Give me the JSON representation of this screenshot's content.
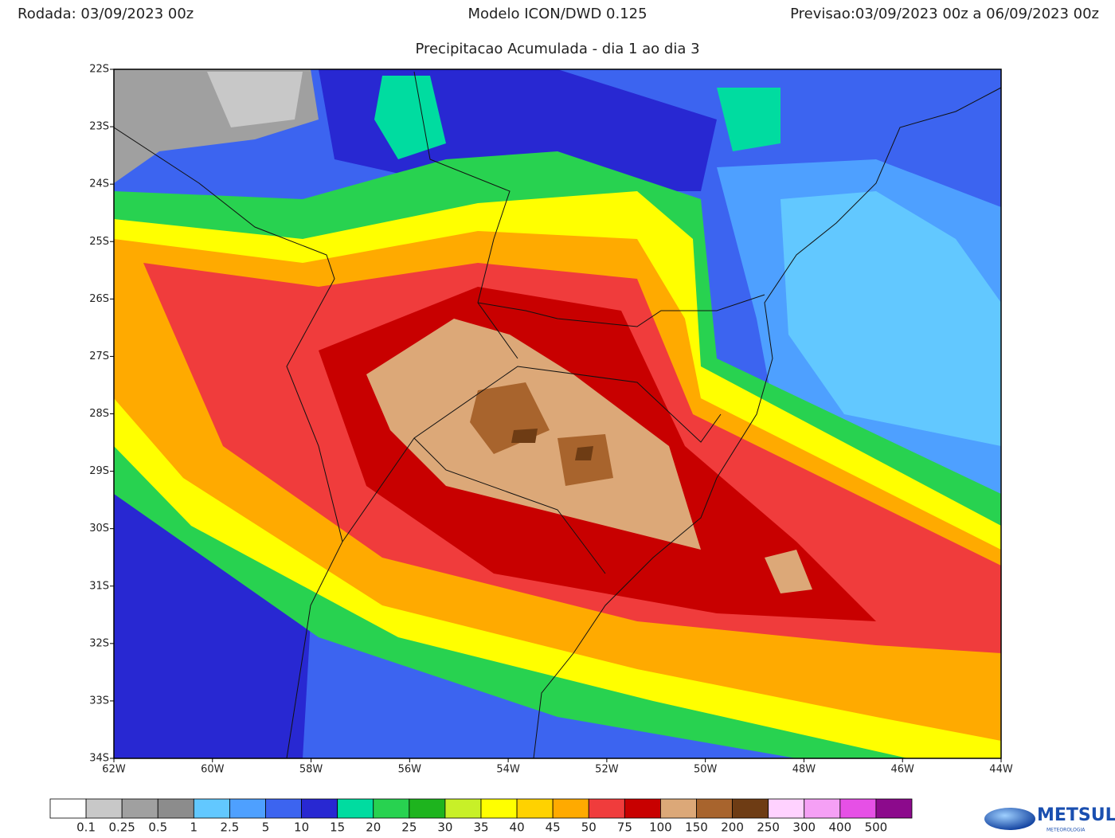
{
  "header": {
    "run": "Rodada: 03/09/2023 00z",
    "model": "Modelo ICON/DWD 0.125",
    "forecast": "Previsao:03/09/2023 00z a 06/09/2023 00z"
  },
  "title": "Precipitacao Acumulada - dia 1 ao dia 3",
  "lat_labels": [
    "22S",
    "23S",
    "24S",
    "25S",
    "26S",
    "27S",
    "28S",
    "29S",
    "30S",
    "31S",
    "32S",
    "33S",
    "34S"
  ],
  "lon_labels": [
    "62W",
    "60W",
    "58W",
    "56W",
    "54W",
    "52W",
    "50W",
    "48W",
    "46W",
    "44W"
  ],
  "legend": {
    "labels": [
      "0.1",
      "0.25",
      "0.5",
      "1",
      "2.5",
      "5",
      "10",
      "15",
      "20",
      "25",
      "30",
      "35",
      "40",
      "45",
      "50",
      "75",
      "100",
      "150",
      "200",
      "250",
      "300",
      "400",
      "500"
    ],
    "colors": [
      "#ffffff",
      "#c8c8c8",
      "#a0a0a0",
      "#8c8c8c",
      "#62c8ff",
      "#4ea0ff",
      "#3c64f0",
      "#2828d2",
      "#00dca0",
      "#28d250",
      "#1eb41e",
      "#c8f028",
      "#ffff00",
      "#ffd200",
      "#ffaa00",
      "#f03c3c",
      "#c80000",
      "#dca878",
      "#a8642d",
      "#6e3c14",
      "#ffd2ff",
      "#f5a0f5",
      "#e650e6",
      "#8c0a8c"
    ]
  },
  "logo": {
    "name": "METSUL",
    "tagline": "METEOROLOGIA"
  }
}
